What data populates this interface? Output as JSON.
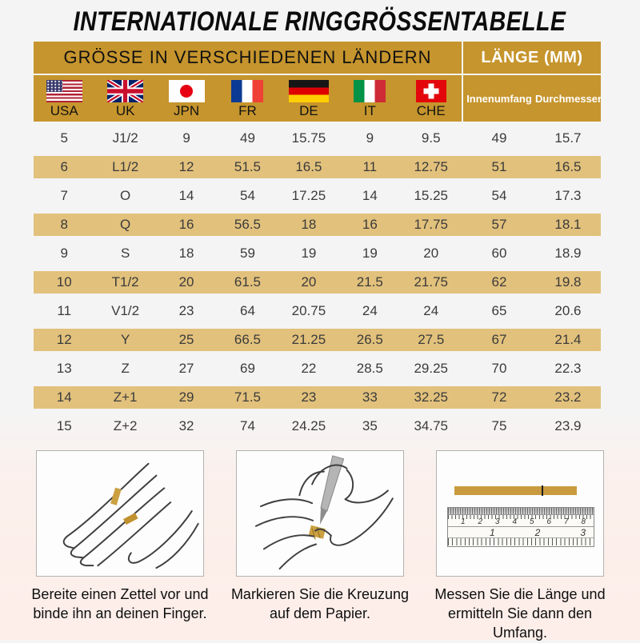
{
  "title": "INTERNATIONALE RINGGRÖSSENTABELLE",
  "colors": {
    "gold_header": "#C6952D",
    "tan_row": "#E2C17C",
    "strip_gold": "#C99B3E",
    "background_top": "#F4F4F4",
    "background_bottom": "#FDEEE9"
  },
  "table": {
    "header_left": "GRÖSSE IN VERSCHIEDENEN LÄNDERN",
    "header_right": "LÄNGE (MM)",
    "countries": [
      {
        "code": "USA",
        "flag": "usa-flag"
      },
      {
        "code": "UK",
        "flag": "uk-flag"
      },
      {
        "code": "JPN",
        "flag": "japan-flag"
      },
      {
        "code": "FR",
        "flag": "france-flag"
      },
      {
        "code": "DE",
        "flag": "germany-flag"
      },
      {
        "code": "IT",
        "flag": "italy-flag"
      },
      {
        "code": "CHE",
        "flag": "switzerland-flag"
      }
    ],
    "length_headers": [
      "Innenumfang",
      "Durchmesser"
    ],
    "rows": [
      [
        "5",
        "J1/2",
        "9",
        "49",
        "15.75",
        "9",
        "9.5",
        "49",
        "15.7"
      ],
      [
        "6",
        "L1/2",
        "12",
        "51.5",
        "16.5",
        "11",
        "12.75",
        "51",
        "16.5"
      ],
      [
        "7",
        "O",
        "14",
        "54",
        "17.25",
        "14",
        "15.25",
        "54",
        "17.3"
      ],
      [
        "8",
        "Q",
        "16",
        "56.5",
        "18",
        "16",
        "17.75",
        "57",
        "18.1"
      ],
      [
        "9",
        "S",
        "18",
        "59",
        "19",
        "19",
        "20",
        "60",
        "18.9"
      ],
      [
        "10",
        "T1/2",
        "20",
        "61.5",
        "20",
        "21.5",
        "21.75",
        "62",
        "19.8"
      ],
      [
        "11",
        "V1/2",
        "23",
        "64",
        "20.75",
        "24",
        "24",
        "65",
        "20.6"
      ],
      [
        "12",
        "Y",
        "25",
        "66.5",
        "21.25",
        "26.5",
        "27.5",
        "67",
        "21.4"
      ],
      [
        "13",
        "Z",
        "27",
        "69",
        "22",
        "28.5",
        "29.25",
        "70",
        "22.3"
      ],
      [
        "14",
        "Z+1",
        "29",
        "71.5",
        "23",
        "33",
        "32.25",
        "72",
        "23.2"
      ],
      [
        "15",
        "Z+2",
        "32",
        "74",
        "24.25",
        "35",
        "34.75",
        "75",
        "23.9"
      ]
    ]
  },
  "steps": [
    {
      "caption1": "Bereite einen Zettel vor und",
      "caption2": "binde ihn an deinen Finger."
    },
    {
      "caption1": "Markieren Sie die Kreuzung",
      "caption2": "auf dem Papier."
    },
    {
      "caption1": "Messen Sie die Länge und",
      "caption2": "ermitteln Sie dann den Umfang."
    }
  ],
  "ruler": {
    "cm_numbers": [
      "1",
      "2",
      "3",
      "4",
      "5",
      "6",
      "7",
      "8"
    ],
    "inch_numbers": [
      "1",
      "2",
      "3"
    ]
  }
}
